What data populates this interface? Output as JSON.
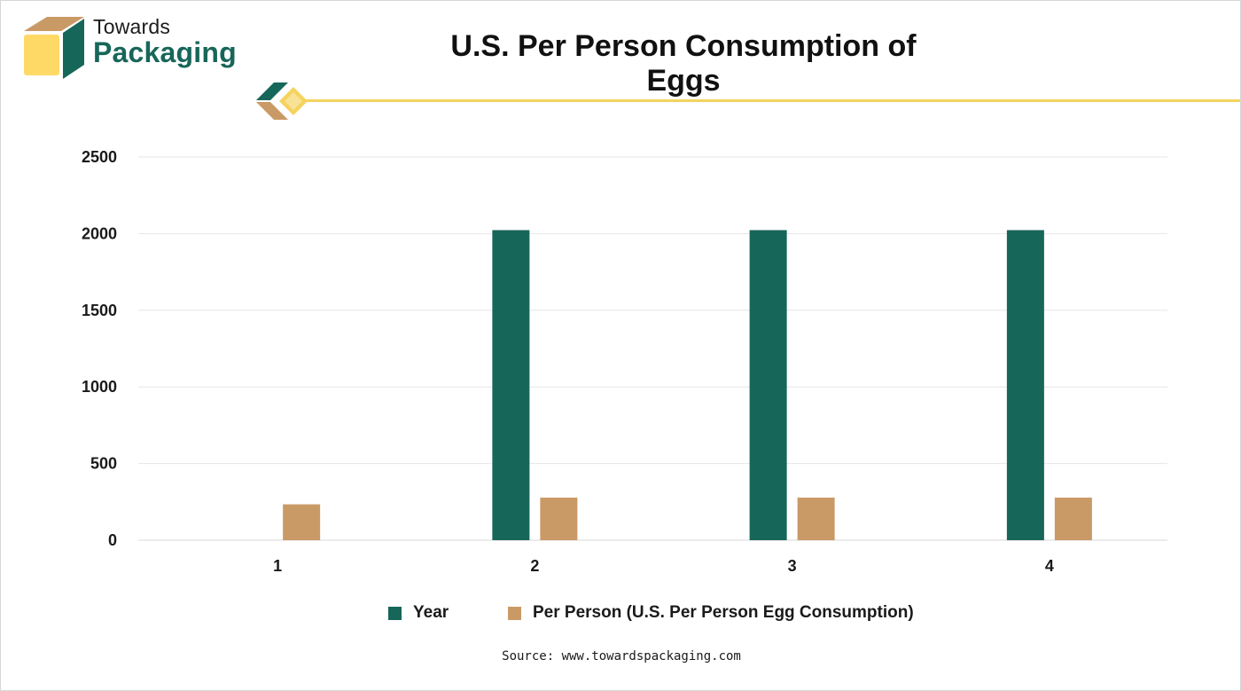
{
  "brand": {
    "name_line1": "Towards",
    "name_line2": "Packaging"
  },
  "colors": {
    "year": "#17665a",
    "per_person": "#c99a66",
    "accent_line": "#f4d35e",
    "logo_gold": "#ffd966",
    "logo_tan": "#c99a66",
    "logo_green": "#17665a",
    "grid": "#e6e6e6"
  },
  "chart_data": {
    "type": "bar",
    "title": "U.S. Per Person Consumption of Eggs",
    "categories": [
      "1",
      "2",
      "3",
      "4"
    ],
    "series": [
      {
        "name": "Year",
        "values": [
          null,
          2023,
          2023,
          2023
        ]
      },
      {
        "name": "Per Person (U.S. Per Person Egg Consumption)",
        "values": [
          234,
          278,
          278,
          278
        ]
      }
    ],
    "ylim": [
      0,
      2500
    ],
    "yticks": [
      0,
      500,
      1000,
      1500,
      2000,
      2500
    ],
    "grid": true,
    "legend_position": "bottom"
  },
  "source": "Source: www.towardspackaging.com"
}
